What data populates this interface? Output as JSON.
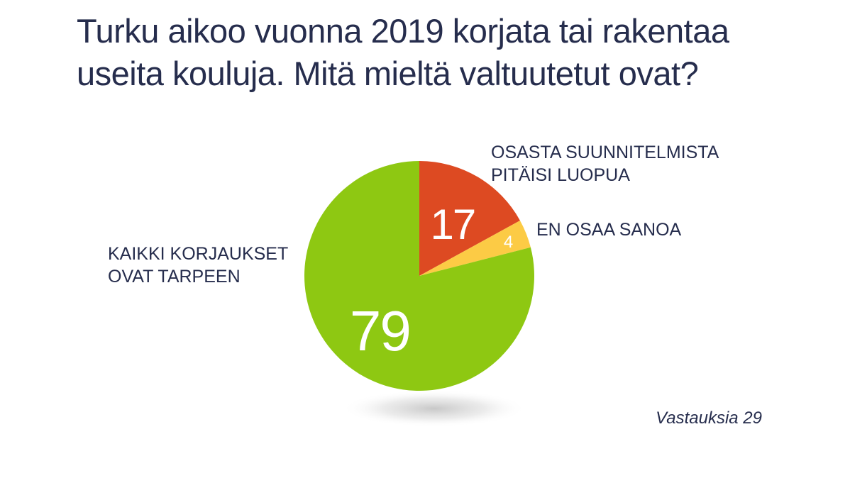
{
  "title": {
    "line1": "Turku aikoo vuonna 2019 korjata tai rakentaa",
    "line2": "useita kouluja. Mitä mieltä valtuutetut ovat?"
  },
  "chart_data": {
    "type": "pie",
    "title": "Turku aikoo vuonna 2019 korjata tai rakentaa useita kouluja. Mitä mieltä valtuutetut ovat?",
    "slices": [
      {
        "label_lines": [
          "OSASTA SUUNNITELMISTA",
          "PITÄISI LUOPUA"
        ],
        "value": 17,
        "value_label": "17",
        "color": "#dd4a22"
      },
      {
        "label_lines": [
          "EN OSAA SANOA"
        ],
        "value": 4,
        "value_label": "4",
        "color": "#fccb45"
      },
      {
        "label_lines": [
          "KAIKKI KORJAUKSET",
          "OVAT TARPEEN"
        ],
        "value": 79,
        "value_label": "79",
        "color": "#8ec812"
      }
    ],
    "start": "12 o'clock",
    "direction": "clockwise",
    "note": "Vastauksia 29"
  }
}
